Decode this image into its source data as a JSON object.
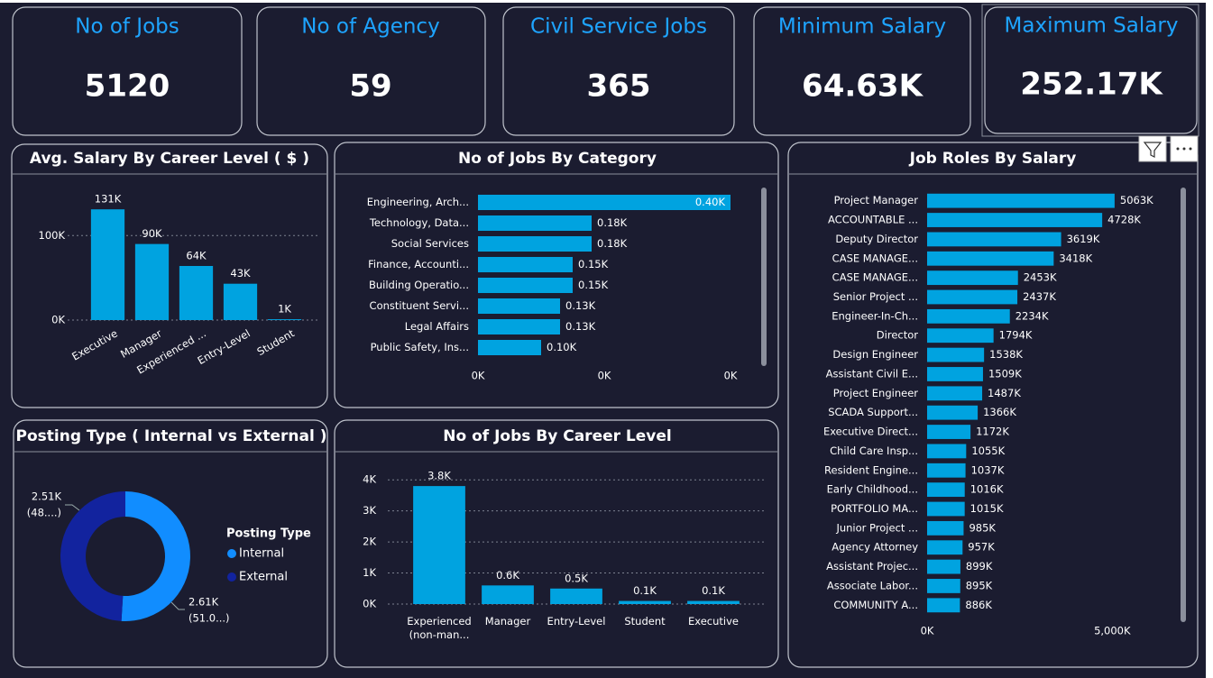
{
  "cards": [
    {
      "label": "No of Jobs",
      "value": 5120
    },
    {
      "label": "No of Agency",
      "value": 59
    },
    {
      "label": "Civil Service Jobs",
      "value": 365
    },
    {
      "label": "Minimum Salary",
      "value": "64.63K"
    },
    {
      "label": "Maximum Salary",
      "value": "252.17K"
    }
  ],
  "chart_data": [
    {
      "type": "bar",
      "title": "Avg. Salary By Career Level ( $ )",
      "categories": [
        "Executive",
        "Manager",
        "Experienced ...",
        "Entry-Level",
        "Student"
      ],
      "values": [
        131000,
        90000,
        64000,
        43000,
        1000
      ],
      "value_labels": [
        "131K",
        "90K",
        "64K",
        "43K",
        "1K"
      ],
      "color": "#00a3e0",
      "ylim": [
        0,
        160000
      ],
      "yticks": [
        {
          "value": 0,
          "label": "0K"
        },
        {
          "value": 100000,
          "label": "100K"
        }
      ],
      "grid": true
    },
    {
      "type": "bar",
      "horizontal": true,
      "title": "No of Jobs By Category",
      "categories": [
        "Engineering, Arch...",
        "Technology, Data...",
        "Social Services",
        "Finance, Accounti...",
        "Building Operatio...",
        "Constituent Servi...",
        "Legal Affairs",
        "Public Safety, Ins..."
      ],
      "values": [
        400,
        180,
        180,
        150,
        150,
        130,
        130,
        100
      ],
      "value_labels": [
        "0.40K",
        "0.18K",
        "0.18K",
        "0.15K",
        "0.15K",
        "0.13K",
        "0.13K",
        "0.10K"
      ],
      "color": "#00a3e0",
      "xlim": [
        0,
        400
      ],
      "xticks": [
        {
          "value": 0,
          "label": "0K"
        },
        {
          "value": 200,
          "label": "0K"
        },
        {
          "value": 400,
          "label": "0K"
        }
      ],
      "grid": false
    },
    {
      "type": "bar",
      "horizontal": true,
      "title": "Job Roles By Salary",
      "categories": [
        "Project Manager",
        "ACCOUNTABLE ...",
        "Deputy Director",
        "CASE MANAGE...",
        "CASE MANAGE...",
        "Senior Project ...",
        "Engineer-In-Ch...",
        "Director",
        "Design Engineer",
        "Assistant Civil E...",
        "Project Engineer",
        "SCADA Support...",
        "Executive Direct...",
        "Child Care Insp...",
        "Resident Engine...",
        "Early Childhood...",
        "PORTFOLIO MA...",
        "Junior Project ...",
        "Agency Attorney",
        "Assistant Projec...",
        "Associate Labor...",
        "COMMUNITY A..."
      ],
      "values": [
        5063000,
        4728000,
        3619000,
        3418000,
        2453000,
        2437000,
        2234000,
        1794000,
        1538000,
        1509000,
        1487000,
        1366000,
        1172000,
        1055000,
        1037000,
        1016000,
        1015000,
        985000,
        957000,
        899000,
        895000,
        886000
      ],
      "value_labels": [
        "5063K",
        "4728K",
        "3619K",
        "3418K",
        "2453K",
        "2437K",
        "2234K",
        "1794K",
        "1538K",
        "1509K",
        "1487K",
        "1366K",
        "1172K",
        "1055K",
        "1037K",
        "1016K",
        "1015K",
        "985K",
        "957K",
        "899K",
        "895K",
        "886K"
      ],
      "color": "#00a3e0",
      "xlim": [
        0,
        6600000
      ],
      "xticks": [
        {
          "value": 0,
          "label": "0K"
        },
        {
          "value": 5000000,
          "label": "5,000K"
        }
      ],
      "grid": false
    },
    {
      "type": "pie",
      "title": "Posting Type ( Internal vs External )",
      "categories": [
        "Internal",
        "External"
      ],
      "values": [
        2610,
        2510
      ],
      "value_labels": [
        "2.61K",
        "2.51K"
      ],
      "percent_labels": [
        "(51.0...)",
        "(48....)"
      ],
      "colors": [
        "#118dff",
        "#12239e"
      ],
      "legend_title": "Posting Type",
      "hole": true
    },
    {
      "type": "bar",
      "title": "No of Jobs By Career Level",
      "categories": [
        "Experienced (non-man...",
        "Manager",
        "Entry-Level",
        "Student",
        "Executive"
      ],
      "values": [
        3800,
        600,
        500,
        100,
        100
      ],
      "value_labels": [
        "3.8K",
        "0.6K",
        "0.5K",
        "0.1K",
        "0.1K"
      ],
      "color": "#00a3e0",
      "ylim": [
        0,
        4500
      ],
      "yticks": [
        {
          "value": 0,
          "label": "0K"
        },
        {
          "value": 1000,
          "label": "1K"
        },
        {
          "value": 2000,
          "label": "2K"
        },
        {
          "value": 3000,
          "label": "3K"
        },
        {
          "value": 4000,
          "label": "4K"
        }
      ],
      "grid": true
    }
  ]
}
